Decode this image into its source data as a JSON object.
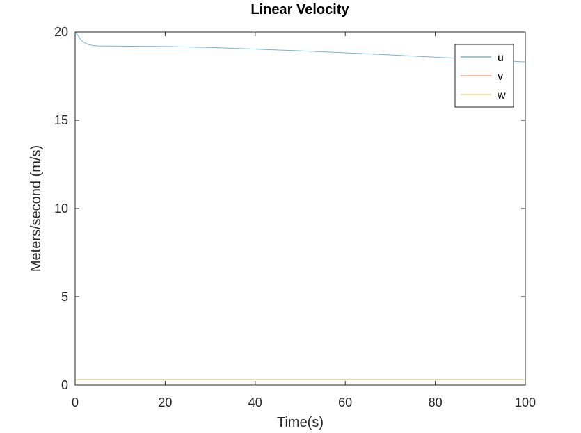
{
  "chart_data": {
    "type": "line",
    "title": "Linear Velocity",
    "xlabel": "Time(s)",
    "ylabel": "Meters/second (m/s)",
    "xlim": [
      0,
      100
    ],
    "ylim": [
      0,
      20
    ],
    "xticks": [
      "0",
      "20",
      "40",
      "60",
      "80",
      "100"
    ],
    "yticks": [
      "0",
      "5",
      "10",
      "15",
      "20"
    ],
    "grid": false,
    "legend_position": "top-right",
    "series": [
      {
        "name": "u",
        "color": "#0072BD",
        "x": [
          0,
          0.5,
          1,
          1.5,
          2,
          3,
          4,
          5,
          10,
          20,
          30,
          40,
          50,
          60,
          70,
          80,
          90,
          100
        ],
        "values": [
          20.0,
          19.85,
          19.65,
          19.5,
          19.4,
          19.28,
          19.23,
          19.21,
          19.2,
          19.18,
          19.12,
          19.03,
          18.93,
          18.82,
          18.7,
          18.57,
          18.44,
          18.3
        ]
      },
      {
        "name": "v",
        "color": "#D95319",
        "x": [
          0,
          100
        ],
        "values": [
          0.0,
          0.0
        ]
      },
      {
        "name": "w",
        "color": "#EDB120",
        "x": [
          0,
          100
        ],
        "values": [
          0.3,
          0.3
        ]
      }
    ]
  }
}
